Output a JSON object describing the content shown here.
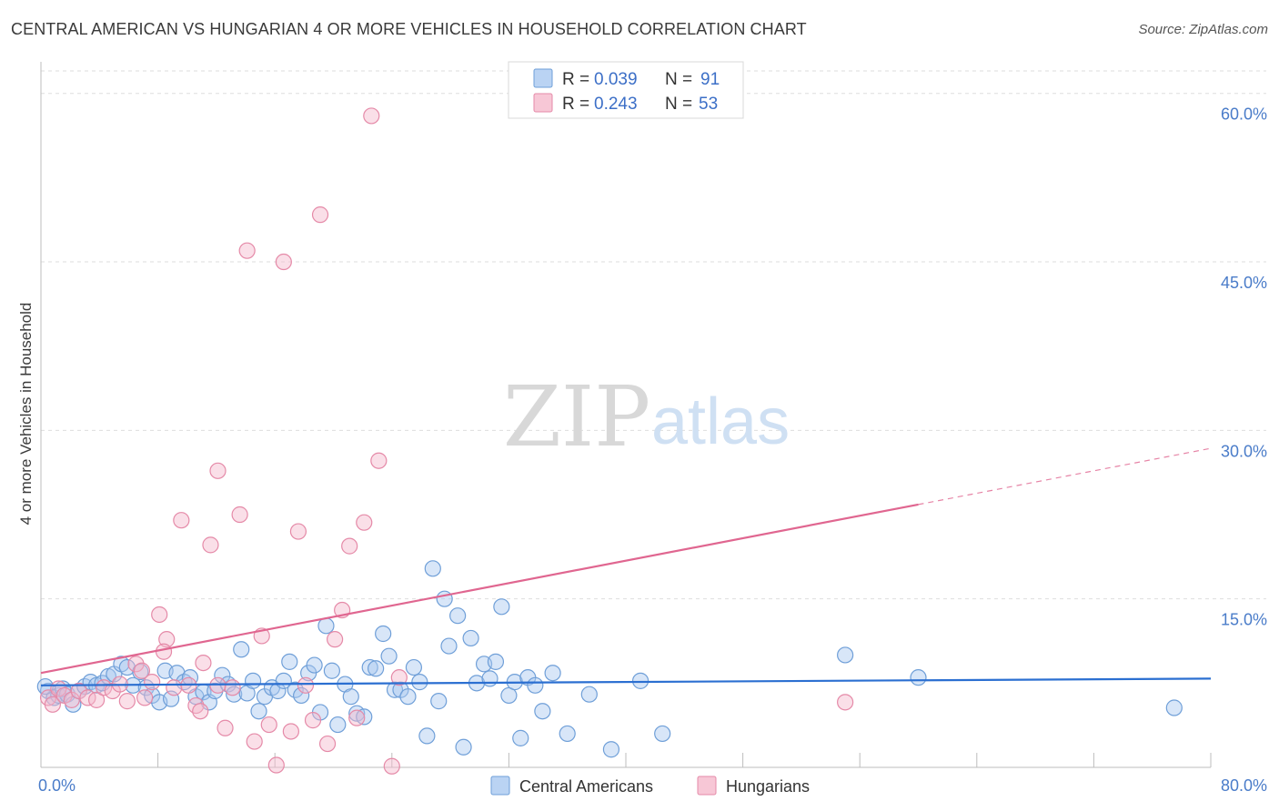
{
  "title": "CENTRAL AMERICAN VS HUNGARIAN 4 OR MORE VEHICLES IN HOUSEHOLD CORRELATION CHART",
  "source": "Source: ZipAtlas.com",
  "watermark": {
    "zip": "ZIP",
    "atlas": "atlas"
  },
  "legend": {
    "rows": [
      {
        "r_label": "R =",
        "r_value": "0.039",
        "n_label": "N =",
        "n_value": "91",
        "color": "#a9c8f0"
      },
      {
        "r_label": "R =",
        "r_value": "0.243",
        "n_label": "N =",
        "n_value": "53",
        "color": "#f5b9cc"
      }
    ]
  },
  "colors": {
    "blue_fill": "#a9c8f0",
    "blue_stroke": "#6f9fd8",
    "blue_line": "#2b6fd1",
    "pink_fill": "#f5b9cc",
    "pink_stroke": "#e58aa8",
    "pink_line": "#e06690",
    "grid": "#dedede",
    "tick_text": "#4a7cc9"
  },
  "chart_data": {
    "type": "scatter",
    "xlabel": "",
    "ylabel": "4 or more Vehicles in Household",
    "xlim": [
      0,
      80
    ],
    "ylim": [
      0,
      62
    ],
    "x_tick_labels": [
      {
        "v": 0,
        "label": "0.0%"
      },
      {
        "v": 80,
        "label": "80.0%"
      }
    ],
    "y_tick_labels": [
      {
        "v": 15,
        "label": "15.0%"
      },
      {
        "v": 30,
        "label": "30.0%"
      },
      {
        "v": 45,
        "label": "45.0%"
      },
      {
        "v": 60,
        "label": "60.0%"
      }
    ],
    "series": [
      {
        "name": "Central Americans",
        "color": "#a9c8f0",
        "trend": {
          "x": [
            0,
            80
          ],
          "y": [
            7.3,
            7.9
          ],
          "dashed_from": null
        },
        "points": [
          [
            0.5,
            6.8
          ],
          [
            0.9,
            6.2
          ],
          [
            1.2,
            6.4
          ],
          [
            1.5,
            7.0
          ],
          [
            1.8,
            6.5
          ],
          [
            2.2,
            5.6
          ],
          [
            2.6,
            6.8
          ],
          [
            3.0,
            7.2
          ],
          [
            3.4,
            7.6
          ],
          [
            3.8,
            7.3
          ],
          [
            4.2,
            7.5
          ],
          [
            4.6,
            8.1
          ],
          [
            5.0,
            8.3
          ],
          [
            5.5,
            9.2
          ],
          [
            5.9,
            8.9
          ],
          [
            6.3,
            7.3
          ],
          [
            6.8,
            8.5
          ],
          [
            7.2,
            7.1
          ],
          [
            7.6,
            6.4
          ],
          [
            8.1,
            5.8
          ],
          [
            8.5,
            8.6
          ],
          [
            8.9,
            6.1
          ],
          [
            9.3,
            8.4
          ],
          [
            9.8,
            7.6
          ],
          [
            10.2,
            8.0
          ],
          [
            10.6,
            6.3
          ],
          [
            11.1,
            6.7
          ],
          [
            11.5,
            5.8
          ],
          [
            11.9,
            6.8
          ],
          [
            12.4,
            8.2
          ],
          [
            12.8,
            7.4
          ],
          [
            13.2,
            6.5
          ],
          [
            13.7,
            10.5
          ],
          [
            14.1,
            6.6
          ],
          [
            14.5,
            7.7
          ],
          [
            14.9,
            5.0
          ],
          [
            15.3,
            6.3
          ],
          [
            15.8,
            7.1
          ],
          [
            16.2,
            6.8
          ],
          [
            16.6,
            7.7
          ],
          [
            17.0,
            9.4
          ],
          [
            17.4,
            6.9
          ],
          [
            17.8,
            6.4
          ],
          [
            18.3,
            8.4
          ],
          [
            18.7,
            9.1
          ],
          [
            19.1,
            4.9
          ],
          [
            19.5,
            12.6
          ],
          [
            19.9,
            8.6
          ],
          [
            20.3,
            3.8
          ],
          [
            20.8,
            7.4
          ],
          [
            21.2,
            6.3
          ],
          [
            21.6,
            4.8
          ],
          [
            22.1,
            4.5
          ],
          [
            22.5,
            8.9
          ],
          [
            22.9,
            8.8
          ],
          [
            23.4,
            11.9
          ],
          [
            23.8,
            9.9
          ],
          [
            24.2,
            6.9
          ],
          [
            24.6,
            6.9
          ],
          [
            25.1,
            6.3
          ],
          [
            25.5,
            8.9
          ],
          [
            25.9,
            7.6
          ],
          [
            26.4,
            2.8
          ],
          [
            26.8,
            17.7
          ],
          [
            27.2,
            5.9
          ],
          [
            27.6,
            15.0
          ],
          [
            27.9,
            10.8
          ],
          [
            28.5,
            13.5
          ],
          [
            28.9,
            1.8
          ],
          [
            29.4,
            11.5
          ],
          [
            29.8,
            7.5
          ],
          [
            30.3,
            9.2
          ],
          [
            30.7,
            7.9
          ],
          [
            31.1,
            9.4
          ],
          [
            31.5,
            14.3
          ],
          [
            32.0,
            6.4
          ],
          [
            32.4,
            7.6
          ],
          [
            32.8,
            2.6
          ],
          [
            33.3,
            8.0
          ],
          [
            33.8,
            7.3
          ],
          [
            34.3,
            5.0
          ],
          [
            35.0,
            8.4
          ],
          [
            36.0,
            3.0
          ],
          [
            37.5,
            6.5
          ],
          [
            39.0,
            1.6
          ],
          [
            41.0,
            7.7
          ],
          [
            42.5,
            3.0
          ],
          [
            55.0,
            10.0
          ],
          [
            60.0,
            8.0
          ],
          [
            77.5,
            5.3
          ],
          [
            0.3,
            7.2
          ]
        ]
      },
      {
        "name": "Hungarians",
        "color": "#f5b9cc",
        "trend": {
          "x": [
            0,
            80
          ],
          "y": [
            8.4,
            28.4
          ],
          "dashed_from": 60
        },
        "points": [
          [
            0.5,
            6.2
          ],
          [
            0.8,
            5.6
          ],
          [
            1.2,
            7.0
          ],
          [
            1.6,
            6.4
          ],
          [
            2.1,
            6.0
          ],
          [
            2.6,
            6.8
          ],
          [
            3.2,
            6.2
          ],
          [
            3.8,
            6.0
          ],
          [
            4.3,
            7.1
          ],
          [
            4.9,
            6.8
          ],
          [
            5.4,
            7.4
          ],
          [
            5.9,
            5.9
          ],
          [
            6.5,
            9.2
          ],
          [
            7.1,
            6.2
          ],
          [
            7.6,
            7.6
          ],
          [
            8.1,
            13.6
          ],
          [
            8.6,
            11.4
          ],
          [
            9.1,
            7.1
          ],
          [
            9.6,
            22.0
          ],
          [
            10.1,
            7.3
          ],
          [
            10.6,
            5.5
          ],
          [
            11.1,
            9.3
          ],
          [
            11.6,
            19.8
          ],
          [
            12.1,
            26.4
          ],
          [
            12.6,
            3.5
          ],
          [
            13.1,
            7.1
          ],
          [
            13.6,
            22.5
          ],
          [
            14.1,
            46.0
          ],
          [
            14.6,
            2.3
          ],
          [
            15.1,
            11.7
          ],
          [
            15.6,
            3.8
          ],
          [
            16.1,
            0.2
          ],
          [
            16.6,
            45.0
          ],
          [
            17.1,
            3.2
          ],
          [
            17.6,
            21.0
          ],
          [
            18.1,
            7.3
          ],
          [
            18.6,
            4.2
          ],
          [
            19.1,
            49.2
          ],
          [
            19.6,
            2.1
          ],
          [
            20.1,
            11.4
          ],
          [
            20.6,
            14.0
          ],
          [
            21.1,
            19.7
          ],
          [
            21.6,
            4.4
          ],
          [
            22.1,
            21.8
          ],
          [
            22.6,
            58.0
          ],
          [
            23.1,
            27.3
          ],
          [
            24.0,
            0.1
          ],
          [
            24.5,
            8.0
          ],
          [
            8.4,
            10.3
          ],
          [
            10.9,
            5.0
          ],
          [
            12.1,
            7.3
          ],
          [
            55.0,
            5.8
          ],
          [
            6.9,
            8.6
          ]
        ]
      }
    ]
  }
}
